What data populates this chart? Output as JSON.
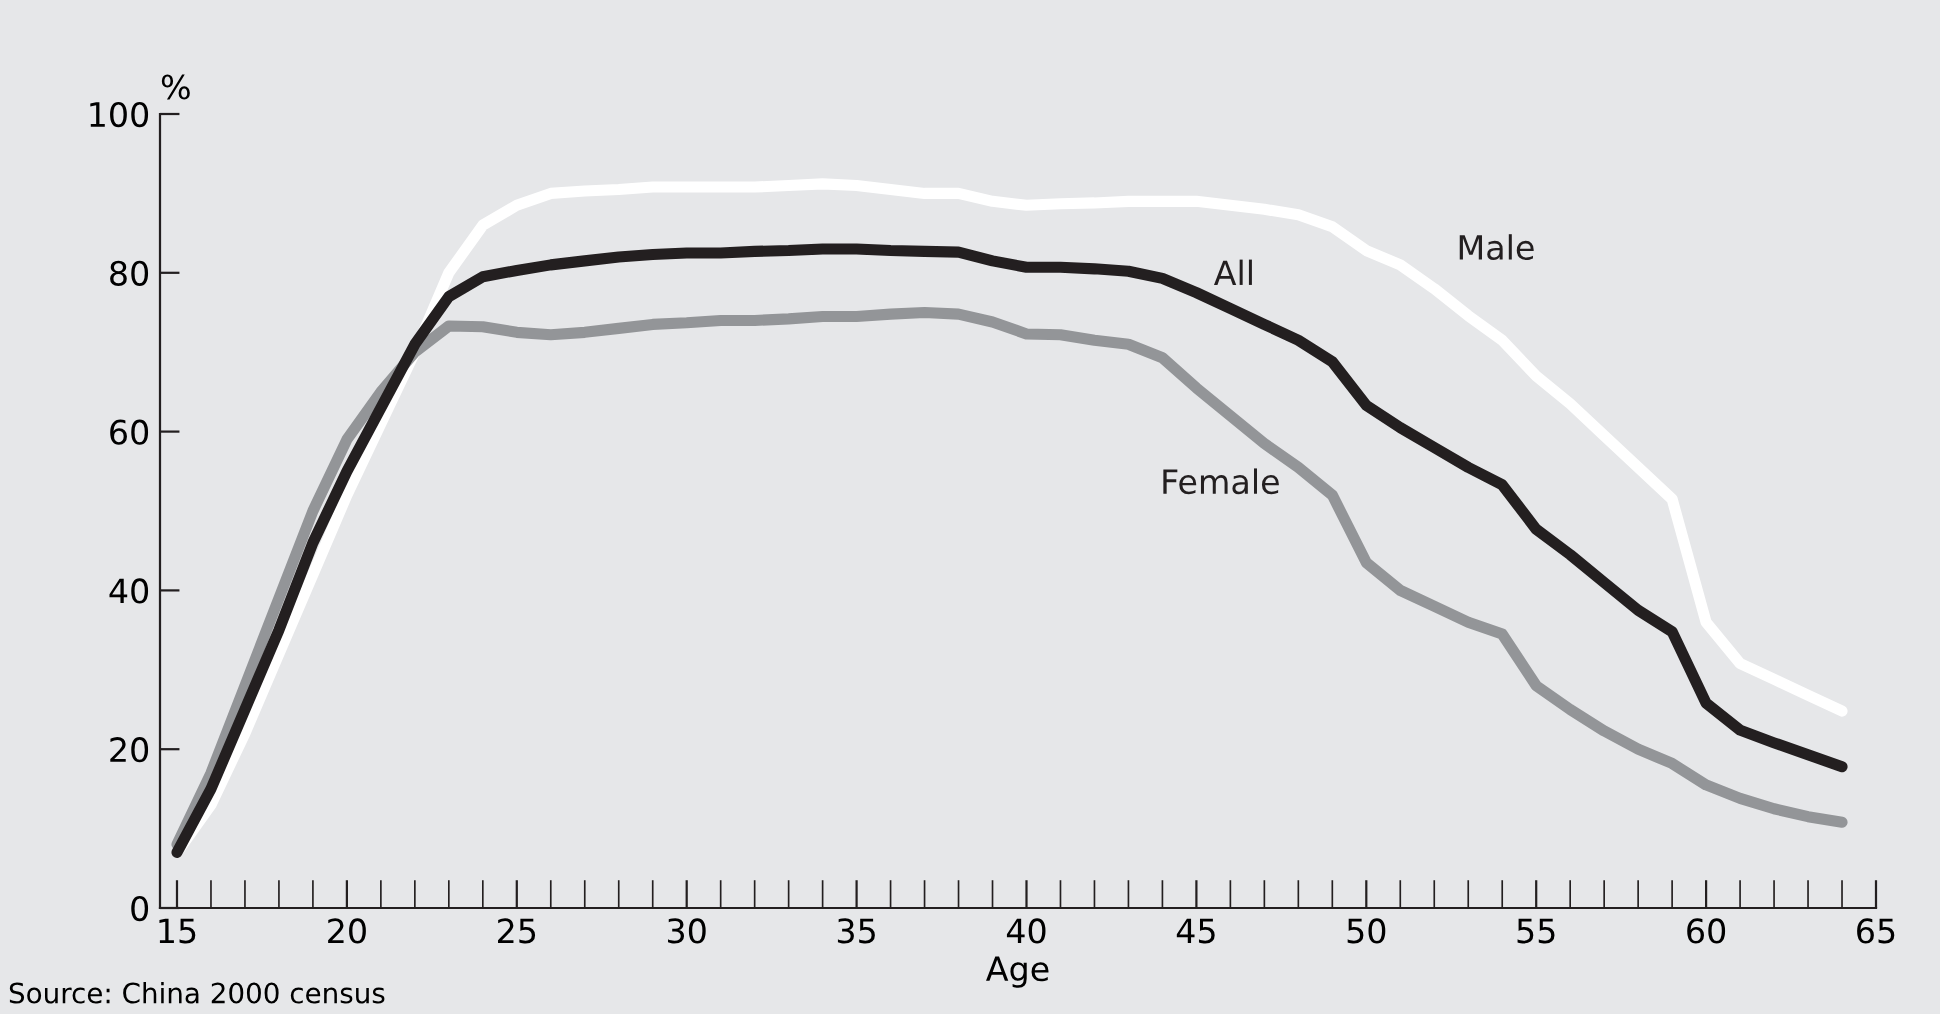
{
  "chart_data": {
    "type": "line",
    "xlabel": "Age",
    "ylabel": "%",
    "x": [
      15,
      16,
      17,
      18,
      19,
      20,
      21,
      22,
      23,
      24,
      25,
      26,
      27,
      28,
      29,
      30,
      31,
      32,
      33,
      34,
      35,
      36,
      37,
      38,
      39,
      40,
      41,
      42,
      43,
      44,
      45,
      46,
      47,
      48,
      49,
      50,
      51,
      52,
      53,
      54,
      55,
      56,
      57,
      58,
      59,
      60,
      61,
      62,
      63,
      64
    ],
    "series": [
      {
        "name": "Male",
        "color": "#ffffff",
        "values": [
          7,
          13,
          22,
          32,
          42,
          52,
          61,
          70,
          80,
          86,
          88.5,
          90,
          90.3,
          90.5,
          90.8,
          90.8,
          90.8,
          90.8,
          91,
          91.2,
          91,
          90.5,
          90,
          90,
          89,
          88.5,
          88.7,
          88.8,
          89,
          89,
          89,
          88.5,
          88,
          87.3,
          85.8,
          82.8,
          81,
          78,
          74.6,
          71.5,
          67,
          63.5,
          59.5,
          55.5,
          51.5,
          36,
          30.8,
          28.8,
          26.8,
          24.8
        ]
      },
      {
        "name": "Female",
        "color": "#939598",
        "values": [
          8,
          17,
          28,
          39,
          50,
          59,
          65,
          70,
          73.3,
          73.2,
          72.5,
          72.2,
          72.5,
          73,
          73.5,
          73.7,
          74,
          74,
          74.2,
          74.5,
          74.5,
          74.8,
          75,
          74.8,
          73.8,
          72.3,
          72.2,
          71.5,
          71,
          69.3,
          65.5,
          62,
          58.5,
          55.5,
          52,
          43.5,
          40,
          38,
          36,
          34.5,
          28,
          25,
          22.3,
          20,
          18.2,
          15.5,
          13.8,
          12.5,
          11.5,
          10.8
        ]
      },
      {
        "name": "All",
        "color": "#231f20",
        "values": [
          7,
          15,
          25,
          35,
          46,
          55,
          63,
          71,
          77,
          79.5,
          80.3,
          81,
          81.5,
          82,
          82.3,
          82.5,
          82.5,
          82.7,
          82.8,
          83,
          83,
          82.8,
          82.7,
          82.6,
          81.5,
          80.7,
          80.7,
          80.5,
          80.2,
          79.3,
          77.5,
          75.5,
          73.5,
          71.5,
          68.8,
          63.3,
          60.5,
          58,
          55.5,
          53.3,
          47.7,
          44.5,
          41,
          37.5,
          34.8,
          25.8,
          22.4,
          20.8,
          19.3,
          17.8
        ]
      }
    ],
    "xlim": [
      14.5,
      65
    ],
    "xticks": [
      15,
      20,
      25,
      30,
      35,
      40,
      45,
      50,
      55,
      60,
      65
    ],
    "ylim": [
      0,
      100
    ],
    "yticks": [
      0,
      20,
      40,
      60,
      80,
      100
    ],
    "grid": false,
    "legend": false,
    "marker": "none",
    "line_style": "solid",
    "annotations": [
      "Source: China 2000 census"
    ]
  }
}
